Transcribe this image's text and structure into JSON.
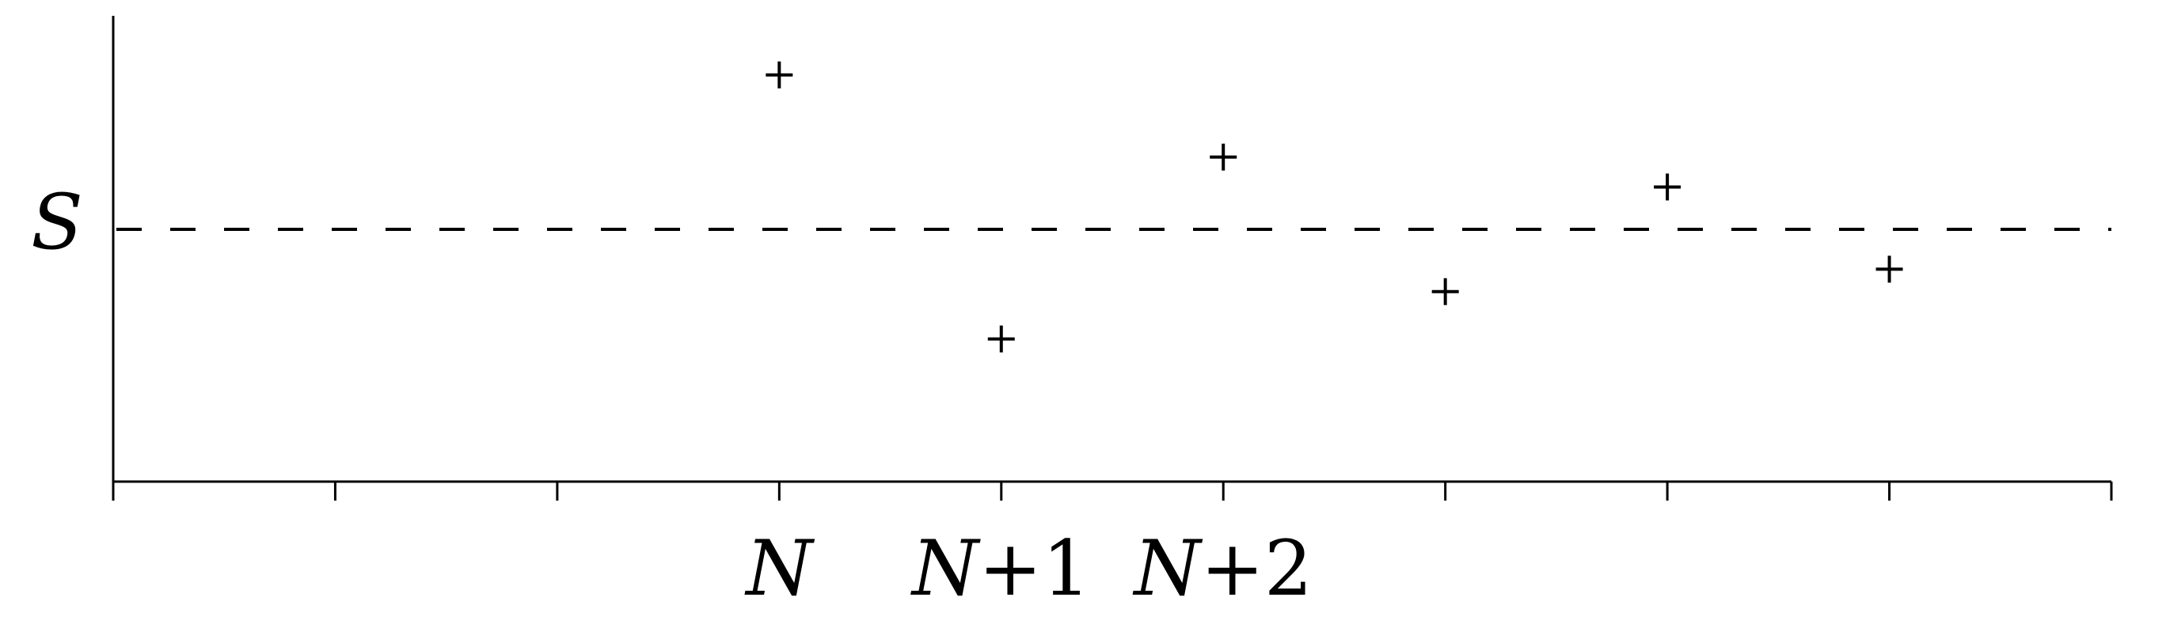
{
  "chart_data": {
    "type": "scatter",
    "title": "",
    "xlabel": "",
    "ylabel": "",
    "marker": "+",
    "xlim": [
      0,
      9
    ],
    "ylim": [
      -0.5,
      1.0
    ],
    "reference_line": {
      "label": "S",
      "value": 0.0,
      "style": "dashed"
    },
    "x_tick_positions": [
      0,
      1,
      2,
      3,
      4,
      5,
      6,
      7,
      8,
      9
    ],
    "x_tick_labels": [
      {
        "x": 3,
        "base": "N",
        "suffix": ""
      },
      {
        "x": 4,
        "base": "N",
        "suffix": "+1"
      },
      {
        "x": 5,
        "base": "N",
        "suffix": "+2"
      }
    ],
    "points": [
      {
        "x": 3,
        "y": 0.62
      },
      {
        "x": 4,
        "y": -0.44
      },
      {
        "x": 5,
        "y": 0.29
      },
      {
        "x": 6,
        "y": -0.25
      },
      {
        "x": 7,
        "y": 0.17
      },
      {
        "x": 8,
        "y": -0.16
      }
    ],
    "grid": false,
    "legend": "none",
    "color": "#000000"
  }
}
